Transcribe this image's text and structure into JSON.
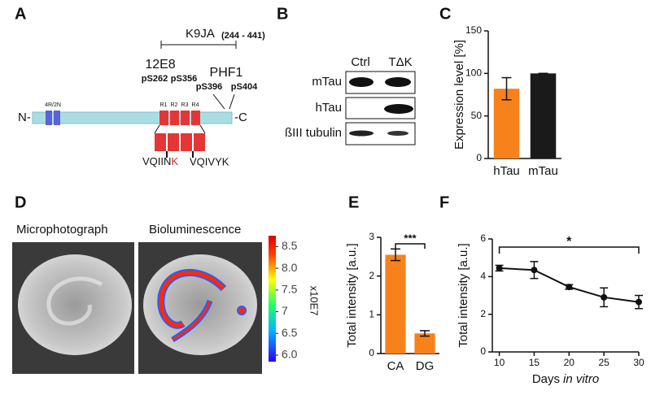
{
  "panels": [
    "A",
    "B",
    "C",
    "D",
    "E",
    "F"
  ],
  "diagram": {
    "n_term": "N-",
    "c_term": "-C",
    "domain": "4R/2N",
    "repeats": [
      "R1",
      "R2",
      "R3",
      "R4"
    ],
    "k9ja": "K9JA",
    "k9ja_range": "(244 - 441)",
    "antibody": "12E8",
    "phf1": "PHF1",
    "sites": [
      "pS262",
      "pS356",
      "pS396",
      "pS404"
    ],
    "motif1": [
      "VQIIN",
      "K"
    ],
    "motif2": "VQIVYK"
  },
  "blot": {
    "columns": [
      "Ctrl",
      "TΔK"
    ],
    "rows": [
      "mTau",
      "hTau",
      "ßIII tubulin"
    ]
  },
  "imaging": {
    "titles": [
      "Microphotograph",
      "Bioluminescence"
    ],
    "unit": "x10E7",
    "clim": [
      5.85,
      8.75
    ],
    "cticks": [
      {
        "value": 6,
        "label": "6.0"
      },
      6.5,
      7,
      {
        "value": 7.5,
        "label": "7.5"
      },
      {
        "value": 8,
        "label": "8.0"
      },
      8.5
    ]
  },
  "chart_data": [
    {
      "type": "bar",
      "ylabel": "Expression level [%]",
      "categories": [
        "hTau",
        "mTau"
      ],
      "values": [
        82,
        100
      ],
      "errors": [
        13,
        0
      ],
      "colors": [
        "#f7821b",
        "#1a1a1a"
      ],
      "ylim": [
        0,
        150
      ],
      "yticks": [
        0,
        50,
        100,
        150
      ]
    },
    {
      "type": "bar",
      "ylabel": "Total intensity [a.u.]",
      "categories": [
        "CA",
        "DG"
      ],
      "values": [
        2.55,
        0.52
      ],
      "errors": [
        0.15,
        0.07
      ],
      "colors": [
        "#f7821b",
        "#f7821b"
      ],
      "ylim": [
        0,
        3
      ],
      "yticks": [
        0,
        1,
        2,
        3
      ],
      "annotation": "***"
    },
    {
      "type": "line",
      "ylabel": "Total intensity [a.u.]",
      "xlabel": "Days",
      "xlabel_italic": "in vitro",
      "x": [
        10,
        15,
        20,
        25,
        30
      ],
      "values": [
        4.45,
        4.35,
        3.45,
        2.9,
        2.65
      ],
      "errors": [
        0.15,
        0.45,
        0.12,
        0.5,
        0.35
      ],
      "color": "#111111",
      "xlim": [
        9,
        30
      ],
      "xticks": [
        10,
        15,
        20,
        25,
        30
      ],
      "ylim": [
        0,
        6
      ],
      "yticks": [
        0,
        2,
        4,
        6
      ],
      "annotation": "*"
    }
  ]
}
